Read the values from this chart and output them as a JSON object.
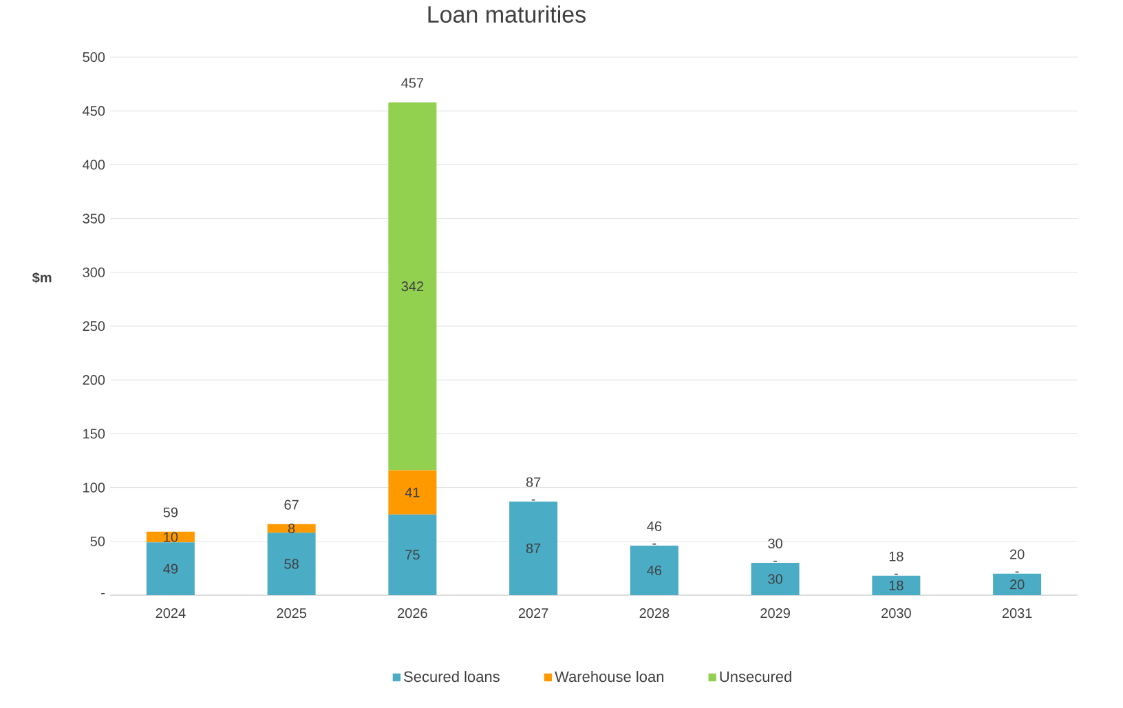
{
  "chart_data": {
    "type": "bar",
    "title": "Loan maturities",
    "ylabel": "$m",
    "stacked": true,
    "categories": [
      "2024",
      "2025",
      "2026",
      "2027",
      "2028",
      "2029",
      "2030",
      "2031"
    ],
    "series": [
      {
        "name": "Secured loans",
        "color": "#4bacc6",
        "values": [
          49,
          58,
          75,
          87,
          46,
          30,
          18,
          20
        ],
        "value_labels": [
          "49",
          "58",
          "75",
          "87",
          "46",
          "30",
          "18",
          "20"
        ]
      },
      {
        "name": "Warehouse loan",
        "color": "#ff9900",
        "values": [
          10,
          8,
          41,
          0,
          0,
          0,
          0,
          0
        ],
        "value_labels": [
          "10",
          "8",
          "41",
          "-",
          "-",
          "-",
          "-",
          "-"
        ]
      },
      {
        "name": "Unsecured",
        "color": "#92d050",
        "values": [
          0,
          0,
          342,
          0,
          0,
          0,
          0,
          0
        ],
        "value_labels": [
          null,
          null,
          "342",
          null,
          null,
          null,
          null,
          null
        ]
      }
    ],
    "totals": [
      "59",
      "67",
      "457",
      "87",
      "46",
      "30",
      "18",
      "20"
    ],
    "ylim": [
      0,
      500
    ],
    "yticks": [
      {
        "value": 0,
        "label": "-"
      },
      50,
      100,
      150,
      200,
      250,
      300,
      350,
      400,
      450,
      500
    ],
    "grid": "y",
    "legend": "bottom"
  }
}
